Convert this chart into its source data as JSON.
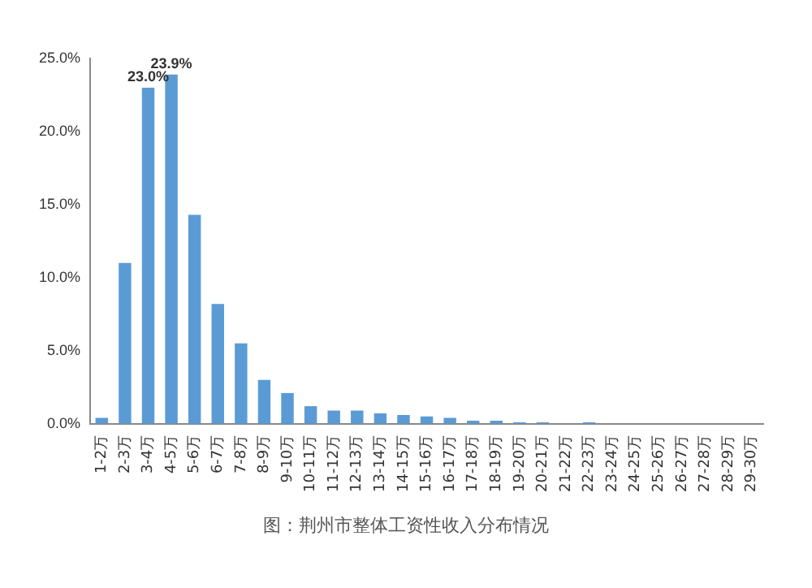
{
  "chart_data": {
    "type": "bar",
    "categories": [
      "1-2万",
      "2-3万",
      "3-4万",
      "4-5万",
      "5-6万",
      "6-7万",
      "7-8万",
      "8-9万",
      "9-10万",
      "10-11万",
      "11-12万",
      "12-13万",
      "13-14万",
      "14-15万",
      "15-16万",
      "16-17万",
      "17-18万",
      "18-19万",
      "19-20万",
      "20-21万",
      "21-22万",
      "22-23万",
      "23-24万",
      "24-25万",
      "25-26万",
      "26-27万",
      "27-28万",
      "28-29万",
      "29-30万"
    ],
    "values": [
      0.4,
      11.0,
      23.0,
      23.9,
      14.3,
      8.2,
      5.5,
      3.0,
      2.1,
      1.2,
      0.9,
      0.9,
      0.7,
      0.6,
      0.5,
      0.4,
      0.2,
      0.2,
      0.1,
      0.1,
      0,
      0.1,
      0,
      0,
      0,
      0,
      0,
      0,
      0
    ],
    "value_labels": [
      null,
      null,
      "23.0%",
      "23.9%",
      null,
      null,
      null,
      null,
      null,
      null,
      null,
      null,
      null,
      null,
      null,
      null,
      null,
      null,
      null,
      null,
      null,
      null,
      null,
      null,
      null,
      null,
      null,
      null,
      null
    ],
    "color": "#5b9bd5",
    "ylim": [
      0,
      25
    ],
    "yticks": [
      {
        "value": 0,
        "label": "0.0%"
      },
      {
        "value": 5,
        "label": "5.0%"
      },
      {
        "value": 10,
        "label": "10.0%"
      },
      {
        "value": 15,
        "label": "15.0%"
      },
      {
        "value": 20,
        "label": "20.0%"
      },
      {
        "value": 25,
        "label": "25.0%"
      }
    ],
    "grid": false,
    "legend": false,
    "annotations": [
      "图：荆州市整体工资性收入分布情况"
    ]
  }
}
